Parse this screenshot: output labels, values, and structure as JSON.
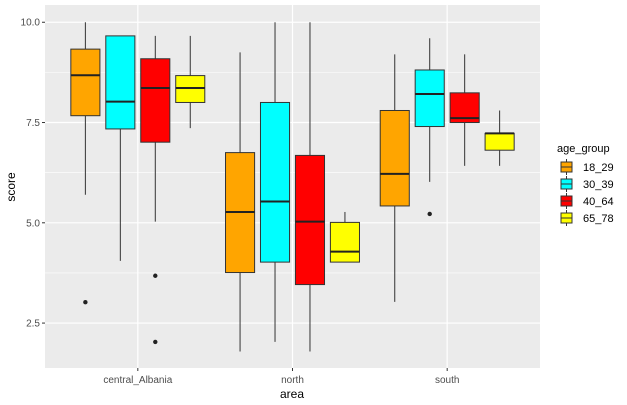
{
  "chart_data": {
    "type": "boxplot",
    "title": "",
    "xlabel": "area",
    "ylabel": "score",
    "ylim": [
      1.38,
      10.43
    ],
    "yticks": [
      2.5,
      5.0,
      7.5,
      10.0
    ],
    "ytick_labels": [
      "2.5",
      "5.0",
      "7.5",
      "10.0"
    ],
    "categories": [
      "central_Albania",
      "north",
      "south"
    ],
    "grid": true,
    "legend": {
      "title": "age_group",
      "position": "right"
    },
    "series": [
      {
        "name": "18_29",
        "color": "#FFA500",
        "boxes": [
          {
            "low": 5.7,
            "q1": 7.67,
            "median": 8.68,
            "q3": 9.33,
            "high": 10.0,
            "outliers": [
              3.02
            ]
          },
          {
            "low": 1.79,
            "q1": 3.76,
            "median": 5.27,
            "q3": 6.75,
            "high": 9.25,
            "outliers": []
          },
          {
            "low": 3.03,
            "q1": 5.42,
            "median": 6.22,
            "q3": 7.8,
            "high": 9.2,
            "outliers": []
          }
        ]
      },
      {
        "name": "30_39",
        "color": "#00FFFF",
        "boxes": [
          {
            "low": 4.05,
            "q1": 7.34,
            "median": 8.02,
            "q3": 9.66,
            "high": 9.66,
            "outliers": []
          },
          {
            "low": 2.03,
            "q1": 4.02,
            "median": 5.53,
            "q3": 8.0,
            "high": 10.0,
            "outliers": []
          },
          {
            "low": 6.02,
            "q1": 7.4,
            "median": 8.21,
            "q3": 8.81,
            "high": 9.6,
            "outliers": [
              5.22
            ]
          }
        ]
      },
      {
        "name": "40_64",
        "color": "#FF0000",
        "boxes": [
          {
            "low": 5.03,
            "q1": 7.01,
            "median": 8.36,
            "q3": 9.09,
            "high": 9.66,
            "outliers": [
              3.68,
              2.03
            ]
          },
          {
            "low": 1.79,
            "q1": 3.46,
            "median": 5.03,
            "q3": 6.68,
            "high": 10.0,
            "outliers": []
          },
          {
            "low": 6.42,
            "q1": 7.5,
            "median": 7.61,
            "q3": 8.24,
            "high": 9.2,
            "outliers": []
          }
        ]
      },
      {
        "name": "65_78",
        "color": "#FFFF00",
        "boxes": [
          {
            "low": 7.36,
            "q1": 8.0,
            "median": 8.36,
            "q3": 8.67,
            "high": 9.66,
            "outliers": []
          },
          {
            "low": 4.02,
            "q1": 4.02,
            "median": 4.28,
            "q3": 5.01,
            "high": 5.27,
            "outliers": []
          },
          {
            "low": 6.42,
            "q1": 6.81,
            "median": 7.23,
            "q3": 7.23,
            "high": 7.8,
            "outliers": []
          }
        ]
      }
    ]
  }
}
